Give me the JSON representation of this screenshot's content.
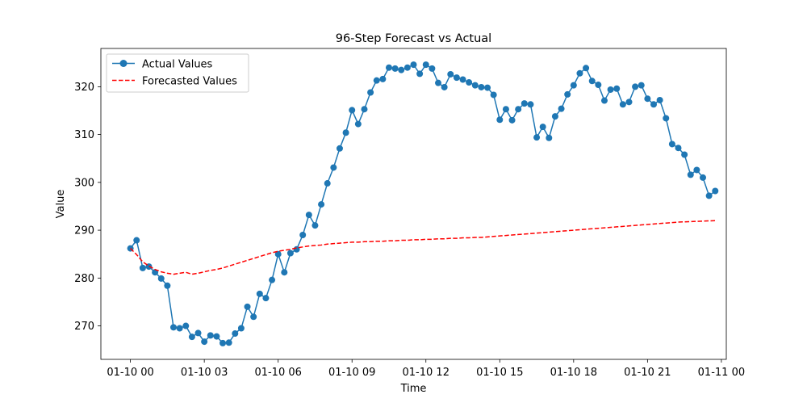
{
  "chart_data": {
    "type": "line",
    "title": "96-Step Forecast vs Actual",
    "xlabel": "Time",
    "ylabel": "Value",
    "x_start": "2024-01-10 00:00",
    "x_step_minutes": 15,
    "xlim_hours": [
      -1.2,
      24.2
    ],
    "ylim": [
      263.0,
      328.0
    ],
    "xticks": [
      {
        "hours": 0,
        "label": "01-10 00"
      },
      {
        "hours": 3,
        "label": "01-10 03"
      },
      {
        "hours": 6,
        "label": "01-10 06"
      },
      {
        "hours": 9,
        "label": "01-10 09"
      },
      {
        "hours": 12,
        "label": "01-10 12"
      },
      {
        "hours": 15,
        "label": "01-10 15"
      },
      {
        "hours": 18,
        "label": "01-10 18"
      },
      {
        "hours": 21,
        "label": "01-10 21"
      },
      {
        "hours": 24,
        "label": "01-11 00"
      }
    ],
    "yticks": [
      270,
      280,
      290,
      300,
      310,
      320
    ],
    "legend_position": "upper-left",
    "grid": false,
    "series": [
      {
        "name": "Actual Values",
        "style": "solid-with-markers",
        "color": "#1f77b4",
        "values": [
          286.2,
          287.9,
          282.1,
          282.4,
          281.2,
          279.9,
          278.4,
          269.7,
          269.5,
          270.0,
          267.7,
          268.5,
          266.7,
          268.0,
          267.8,
          266.4,
          266.5,
          268.4,
          269.5,
          274.0,
          271.9,
          276.7,
          275.8,
          279.6,
          285.0,
          281.2,
          285.2,
          286.0,
          289.0,
          293.2,
          291.0,
          295.4,
          299.8,
          303.1,
          307.1,
          310.4,
          315.1,
          312.2,
          315.3,
          318.8,
          321.3,
          321.6,
          324.0,
          323.8,
          323.5,
          324.0,
          324.6,
          322.7,
          324.6,
          323.8,
          320.8,
          319.9,
          322.6,
          321.9,
          321.5,
          320.9,
          320.3,
          319.9,
          319.8,
          318.3,
          313.1,
          315.3,
          313.0,
          315.3,
          316.5,
          316.3,
          309.4,
          311.6,
          309.3,
          313.8,
          315.4,
          318.4,
          320.3,
          322.8,
          323.9,
          321.2,
          320.4,
          317.1,
          319.4,
          319.6,
          316.3,
          316.8,
          320.0,
          320.3,
          317.5,
          316.3,
          317.2,
          313.4,
          308.0,
          307.2,
          305.8,
          301.6,
          302.6,
          301.0,
          297.2,
          298.2
        ]
      },
      {
        "name": "Forecasted Values",
        "style": "dashed",
        "color": "#ff0000",
        "values": [
          286.2,
          284.9,
          283.4,
          282.5,
          281.8,
          281.3,
          281.0,
          280.8,
          281.0,
          281.2,
          280.8,
          281.0,
          281.3,
          281.6,
          281.8,
          282.1,
          282.5,
          282.9,
          283.3,
          283.7,
          284.1,
          284.5,
          284.9,
          285.3,
          285.6,
          285.8,
          286.0,
          286.3,
          286.5,
          286.7,
          286.8,
          286.9,
          287.1,
          287.2,
          287.3,
          287.4,
          287.5,
          287.5,
          287.6,
          287.6,
          287.7,
          287.7,
          287.8,
          287.8,
          287.9,
          287.9,
          288.0,
          288.0,
          288.1,
          288.1,
          288.2,
          288.2,
          288.3,
          288.3,
          288.4,
          288.4,
          288.5,
          288.5,
          288.6,
          288.7,
          288.8,
          288.9,
          289.0,
          289.1,
          289.2,
          289.3,
          289.4,
          289.5,
          289.6,
          289.7,
          289.8,
          289.9,
          290.0,
          290.1,
          290.2,
          290.3,
          290.4,
          290.5,
          290.6,
          290.7,
          290.8,
          290.9,
          291.0,
          291.1,
          291.2,
          291.3,
          291.4,
          291.5,
          291.6,
          291.7,
          291.75,
          291.8,
          291.85,
          291.9,
          291.95,
          292.0
        ]
      }
    ]
  }
}
